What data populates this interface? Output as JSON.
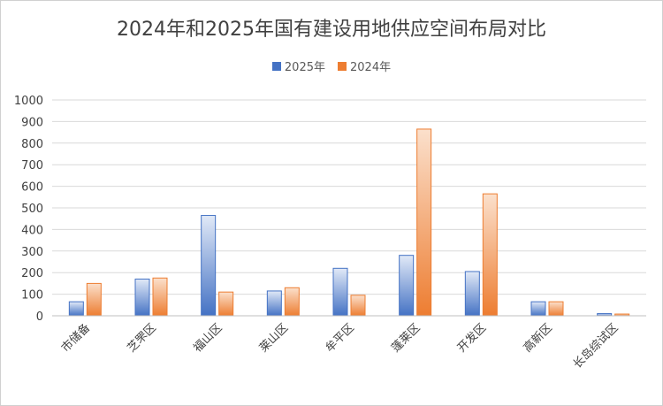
{
  "chart_data": {
    "type": "bar",
    "title": "2024年和2025年国有建设用地供应空间布局对比",
    "categories": [
      "市储备",
      "芝罘区",
      "福山区",
      "莱山区",
      "牟平区",
      "蓬莱区",
      "开发区",
      "高新区",
      "长岛综试区"
    ],
    "series": [
      {
        "name": "2025年",
        "color": "#4472c4",
        "values": [
          65,
          170,
          465,
          115,
          220,
          280,
          205,
          65,
          10
        ]
      },
      {
        "name": "2024年",
        "color": "#ed7d31",
        "values": [
          150,
          175,
          110,
          130,
          95,
          865,
          565,
          65,
          8
        ]
      }
    ],
    "yticks": [
      "0",
      "100",
      "200",
      "300",
      "400",
      "500",
      "600",
      "700",
      "800",
      "900",
      "1000"
    ],
    "ylim": [
      0,
      1000
    ],
    "grid": true,
    "legend": "top"
  }
}
